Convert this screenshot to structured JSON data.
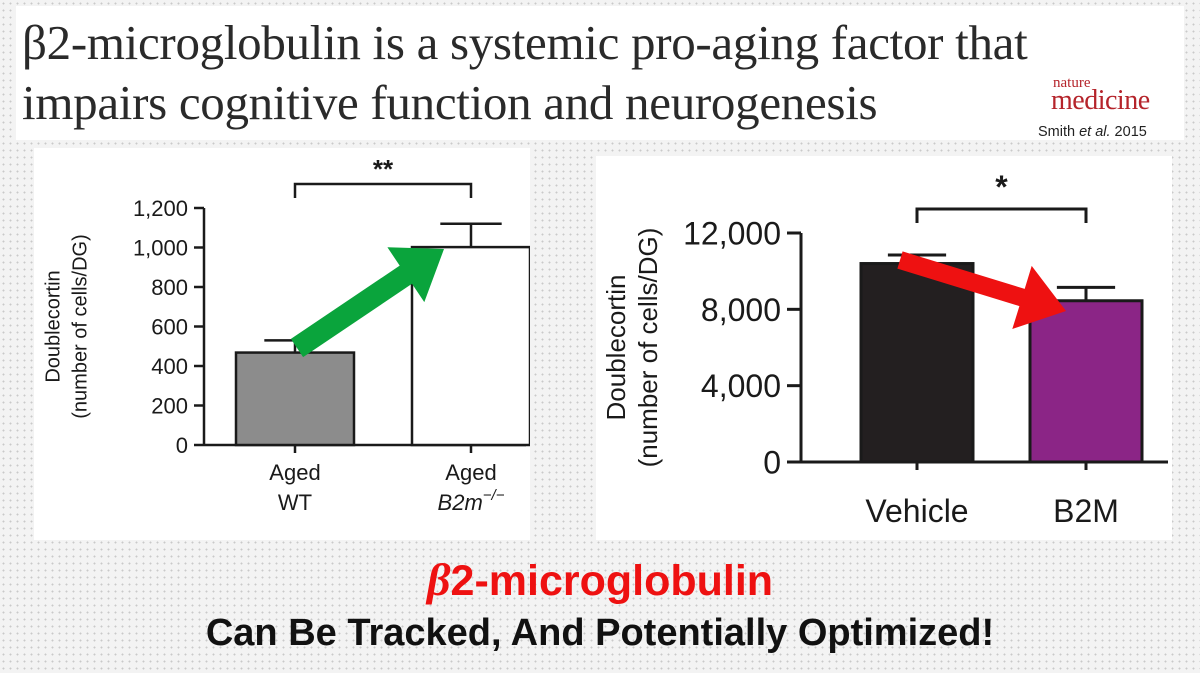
{
  "title": {
    "line1": "β2-microglobulin is a systemic pro-aging factor that",
    "line2": "impairs cognitive function and neurogenesis",
    "journal_small": "nature",
    "journal_big": "medicine",
    "citation_author": "Smith ",
    "citation_etal": "et al.",
    "citation_year": " 2015"
  },
  "chart_data": [
    {
      "type": "bar",
      "categories": [
        "Aged WT",
        "Aged B2m−/−"
      ],
      "category_lines": [
        [
          "Aged",
          "WT"
        ],
        [
          "Aged",
          "B2m"
        ]
      ],
      "category_superscript": [
        "",
        "−/−"
      ],
      "values": [
        468,
        1002
      ],
      "errors": [
        62,
        118
      ],
      "ylabel_line1": "Doublecortin",
      "ylabel_line2": "(number of cells/DG)",
      "ylim": [
        0,
        1200
      ],
      "yticks": [
        0,
        200,
        400,
        600,
        800,
        1000,
        1200
      ],
      "ytick_labels": [
        "0",
        "200",
        "400",
        "600",
        "800",
        "1,000",
        "1,200"
      ],
      "significance": "**",
      "bar_colors": [
        "#8c8c8c",
        "#ffffff"
      ],
      "arrow_color": "#0aa43c",
      "arrow_direction": "up"
    },
    {
      "type": "bar",
      "categories": [
        "Vehicle",
        "B2M"
      ],
      "category_lines": [
        [
          "Vehicle"
        ],
        [
          "B2M"
        ]
      ],
      "category_superscript": [
        "",
        ""
      ],
      "values": [
        10400,
        8450
      ],
      "errors": [
        450,
        700
      ],
      "ylabel_line1": "Doublecortin",
      "ylabel_line2": "(number of cells/DG)",
      "ylim": [
        0,
        12000
      ],
      "yticks": [
        0,
        4000,
        8000,
        12000
      ],
      "ytick_labels": [
        "0",
        "4,000",
        "8,000",
        "12,000"
      ],
      "significance": "*",
      "bar_colors": [
        "#231f20",
        "#8b2586"
      ],
      "arrow_color": "#ee1111",
      "arrow_direction": "down"
    }
  ],
  "footer": {
    "beta": "β",
    "red_rest": "2-microglobulin",
    "line2": "Can Be Tracked, And Potentially Optimized!"
  }
}
